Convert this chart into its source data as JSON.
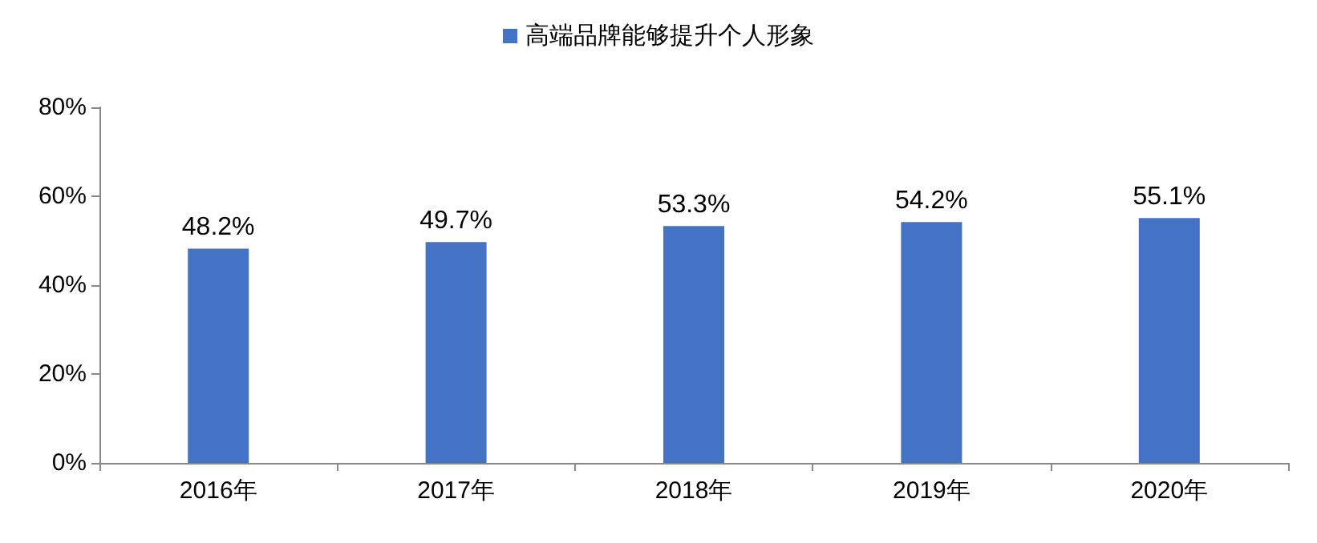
{
  "chart_data": {
    "type": "bar",
    "categories": [
      "2016年",
      "2017年",
      "2018年",
      "2019年",
      "2020年"
    ],
    "series": [
      {
        "name": "高端品牌能够提升个人形象",
        "color": "#4472c4",
        "values": [
          48.2,
          49.7,
          53.3,
          54.2,
          55.1
        ],
        "value_labels": [
          "48.2%",
          "49.7%",
          "53.3%",
          "54.2%",
          "55.1%"
        ]
      }
    ],
    "ylim": [
      0,
      80
    ],
    "yticks": [
      {
        "value": 0,
        "label": "0%"
      },
      {
        "value": 20,
        "label": "20%"
      },
      {
        "value": 40,
        "label": "40%"
      },
      {
        "value": 60,
        "label": "60%"
      },
      {
        "value": 80,
        "label": "80%"
      }
    ],
    "legend": "top",
    "grid": false
  }
}
